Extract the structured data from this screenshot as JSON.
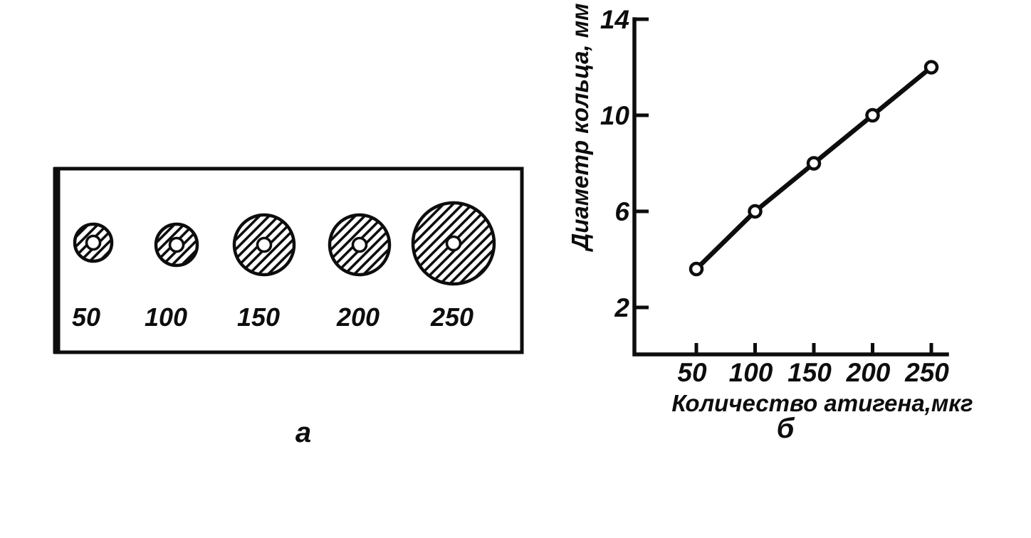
{
  "figure": {
    "background": "#ffffff",
    "ink_color": "#0d0d0d",
    "panel_a": {
      "label": "а",
      "hole_radius": 9.5,
      "wells": [
        {
          "amount": "50",
          "ring_radius": 26
        },
        {
          "amount": "100",
          "ring_radius": 29
        },
        {
          "amount": "150",
          "ring_radius": 42
        },
        {
          "amount": "200",
          "ring_radius": 42
        },
        {
          "amount": "250",
          "ring_radius": 57
        }
      ]
    },
    "panel_b": {
      "label": "б"
    }
  },
  "chart_data": {
    "type": "line",
    "title": "",
    "x": [
      50,
      100,
      150,
      200,
      250
    ],
    "y": [
      3.6,
      6,
      8,
      10,
      12
    ],
    "xlabel": "Количество атигена,мкг",
    "ylabel": "Диаметр кольца, мм",
    "x_ticks": [
      50,
      100,
      150,
      200,
      250
    ],
    "y_ticks": [
      2,
      6,
      10,
      14
    ],
    "xlim": [
      0,
      278
    ],
    "ylim": [
      0,
      14
    ],
    "grid": false,
    "legend": null,
    "marker": "open-circle",
    "line_color": "#0d0d0d",
    "marker_fill": "#ffffff"
  }
}
